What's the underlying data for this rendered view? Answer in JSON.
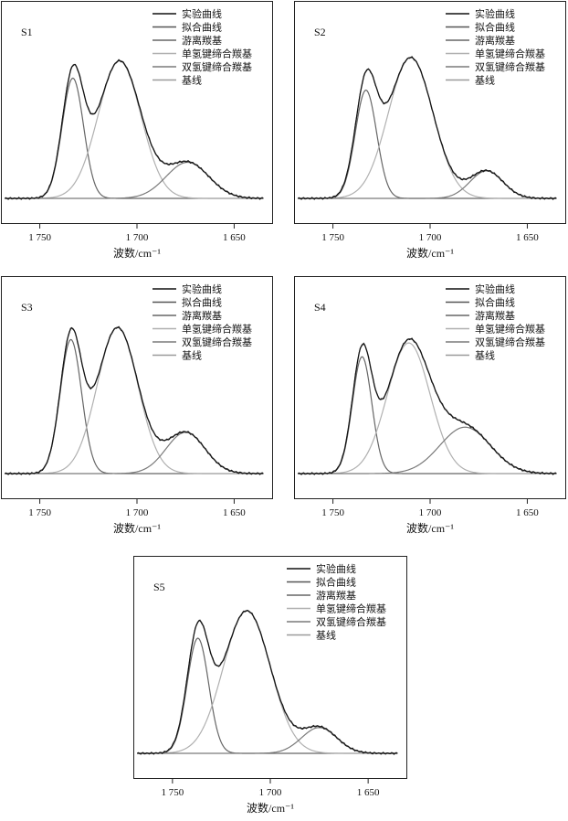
{
  "chart_data": [
    {
      "type": "line",
      "panel_label": "S1",
      "xlabel": "波数/cm⁻¹",
      "xlim": [
        1770,
        1630
      ],
      "x_ticks": [
        1750,
        1700,
        1650
      ],
      "x_tick_labels": [
        "1 750",
        "1 700",
        "1 650"
      ],
      "legend": [
        "实验曲线",
        "拟合曲线",
        "游离羰基",
        "单氢键缔合羰基",
        "双氢键缔合羰基",
        "基线"
      ],
      "x_range": [
        1768,
        1635
      ],
      "peaks": [
        {
          "name": "游离羰基",
          "center": 1733,
          "height": 0.7,
          "width": 5.5
        },
        {
          "name": "单氢键缔合羰基",
          "center": 1709,
          "height": 0.8,
          "width": 11.0
        },
        {
          "name": "双氢键缔合羰基",
          "center": 1674,
          "height": 0.21,
          "width": 11.0
        }
      ]
    },
    {
      "type": "line",
      "panel_label": "S2",
      "xlabel": "波数/cm⁻¹",
      "xlim": [
        1770,
        1630
      ],
      "x_ticks": [
        1750,
        1700,
        1650
      ],
      "x_tick_labels": [
        "1 750",
        "1 700",
        "1 650"
      ],
      "legend": [
        "实验曲线",
        "拟合曲线",
        "游离羰基",
        "单氢键缔合羰基",
        "双氢键缔合羰基",
        "基线"
      ],
      "x_range": [
        1768,
        1635
      ],
      "peaks": [
        {
          "name": "游离羰基",
          "center": 1733,
          "height": 0.63,
          "width": 5.5
        },
        {
          "name": "单氢键缔合羰基",
          "center": 1710,
          "height": 0.82,
          "width": 11.5
        },
        {
          "name": "双氢键缔合羰基",
          "center": 1671,
          "height": 0.16,
          "width": 8.5
        }
      ]
    },
    {
      "type": "line",
      "panel_label": "S3",
      "xlabel": "波数/cm⁻¹",
      "xlim": [
        1770,
        1630
      ],
      "x_ticks": [
        1750,
        1700,
        1650
      ],
      "x_tick_labels": [
        "1 750",
        "1 700",
        "1 650"
      ],
      "legend": [
        "实验曲线",
        "拟合曲线",
        "游离羰基",
        "单氢键缔合羰基",
        "双氢键缔合羰基",
        "基线"
      ],
      "x_range": [
        1768,
        1635
      ],
      "peaks": [
        {
          "name": "游离羰基",
          "center": 1734,
          "height": 0.78,
          "width": 5.5
        },
        {
          "name": "单氢键缔合羰基",
          "center": 1710,
          "height": 0.85,
          "width": 10.5
        },
        {
          "name": "双氢键缔合羰基",
          "center": 1675,
          "height": 0.24,
          "width": 10.0
        }
      ]
    },
    {
      "type": "line",
      "panel_label": "S4",
      "xlabel": "波数/cm⁻¹",
      "xlim": [
        1770,
        1630
      ],
      "x_ticks": [
        1750,
        1700,
        1650
      ],
      "x_tick_labels": [
        "1 750",
        "1 700",
        "1 650"
      ],
      "legend": [
        "实验曲线",
        "拟合曲线",
        "游离羰基",
        "单氢键缔合羰基",
        "双氢键缔合羰基",
        "基线"
      ],
      "x_range": [
        1768,
        1635
      ],
      "peaks": [
        {
          "name": "游离羰基",
          "center": 1735,
          "height": 0.68,
          "width": 5.0
        },
        {
          "name": "单氢键缔合羰基",
          "center": 1711,
          "height": 0.76,
          "width": 11.0
        },
        {
          "name": "双氢键缔合羰基",
          "center": 1682,
          "height": 0.27,
          "width": 13.0
        }
      ]
    },
    {
      "type": "line",
      "panel_label": "S5",
      "xlabel": "波数/cm⁻¹",
      "xlim": [
        1770,
        1630
      ],
      "x_ticks": [
        1750,
        1700,
        1650
      ],
      "x_tick_labels": [
        "1 750",
        "1 700",
        "1 650"
      ],
      "legend": [
        "实验曲线",
        "拟合曲线",
        "游离羰基",
        "单氢键缔合羰基",
        "双氢键缔合羰基",
        "基线"
      ],
      "x_range": [
        1768,
        1635
      ],
      "peaks": [
        {
          "name": "游离羰基",
          "center": 1737,
          "height": 0.67,
          "width": 5.5
        },
        {
          "name": "单氢键缔合羰基",
          "center": 1712,
          "height": 0.83,
          "width": 12.0
        },
        {
          "name": "双氢键缔合羰基",
          "center": 1675,
          "height": 0.15,
          "width": 9.0
        }
      ]
    }
  ],
  "colors": {
    "experimental": "#111111",
    "fitted": "#555555",
    "free_carbonyl": "#666666",
    "single_hbond": "#b0b0b0",
    "double_hbond": "#7a7a7a",
    "baseline": "#9a9a9a"
  }
}
